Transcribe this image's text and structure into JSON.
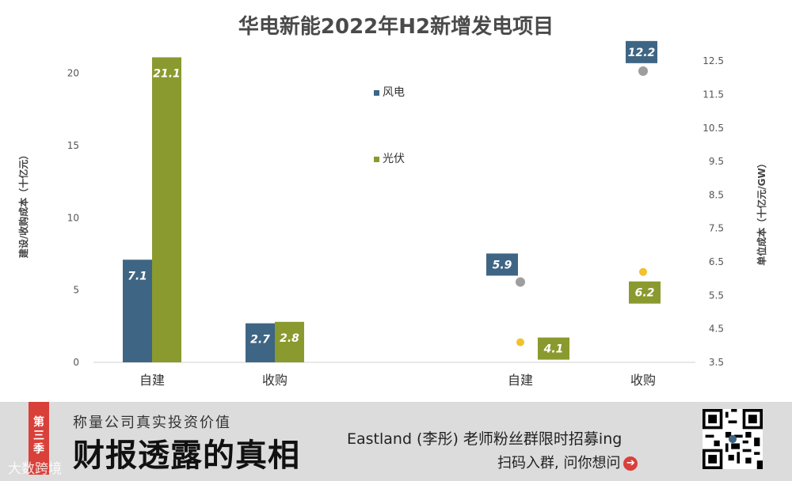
{
  "chart_data": {
    "type": "bar",
    "title": "华电新能2022年H2新增发电项目",
    "left_axis": {
      "label": "建设/收购成本（十亿元）",
      "ylim": [
        0,
        22
      ],
      "ticks": [
        0,
        5,
        10,
        15,
        20
      ]
    },
    "right_axis": {
      "label": "单位成本（十亿元/GW）",
      "ylim": [
        3.5,
        13.0
      ],
      "ticks": [
        3.5,
        4.5,
        5.5,
        6.5,
        7.5,
        8.5,
        9.5,
        10.5,
        11.5,
        12.5
      ]
    },
    "legend": [
      "风电",
      "光伏"
    ],
    "colors": {
      "wind": "#3f6584",
      "solar": "#8a9a2e",
      "wind_dot": "#9e9e9e",
      "solar_dot": "#f2c12e"
    },
    "bar_categories": [
      "自建",
      "收购"
    ],
    "bar_series": [
      {
        "name": "风电",
        "values": [
          7.1,
          2.7
        ],
        "labels": [
          "7.1",
          "2.7"
        ]
      },
      {
        "name": "光伏",
        "values": [
          21.1,
          2.8
        ],
        "labels": [
          "21.1",
          "2.8"
        ]
      }
    ],
    "unit_categories": [
      "自建",
      "收购"
    ],
    "unit_series": [
      {
        "name": "风电",
        "values": [
          5.9,
          12.2
        ],
        "labels": [
          "5.9",
          "12.2"
        ]
      },
      {
        "name": "光伏",
        "values": [
          4.1,
          6.2
        ],
        "labels": [
          "4.1",
          "6.2"
        ]
      }
    ]
  },
  "banner": {
    "season": "第三季",
    "subtitle": "称量公司真实投资价值",
    "title": "财报透露的真相",
    "watermark": "大数跨境",
    "promo": "Eastland (李彤) 老师粉丝群限时招募ing",
    "cta": "扫码入群, 问你想问",
    "cta_icon": "arrow-right-icon"
  }
}
